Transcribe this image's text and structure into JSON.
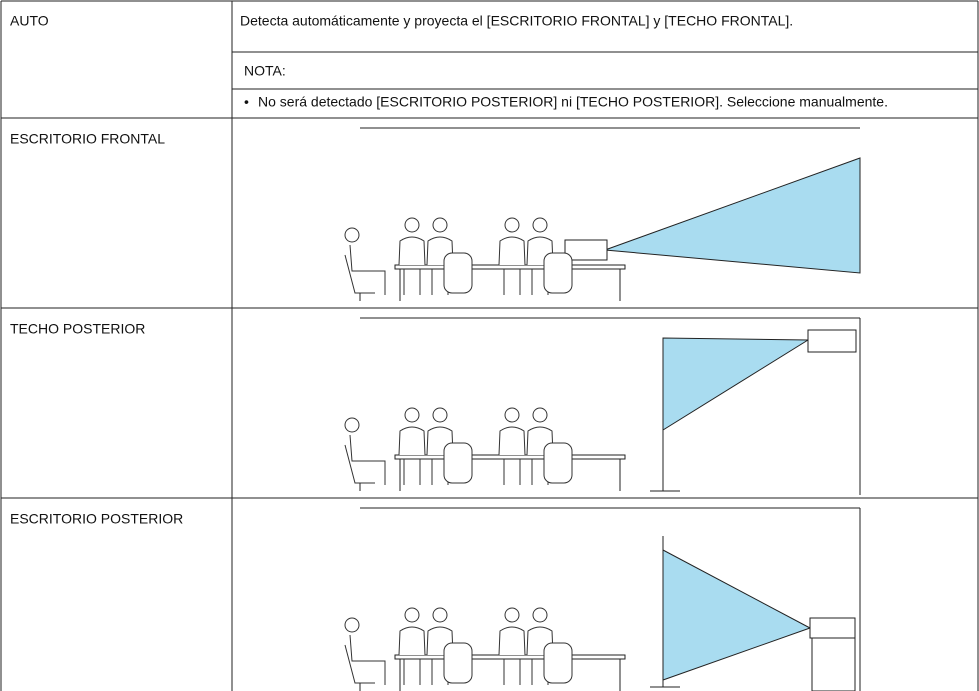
{
  "rows": [
    {
      "label": "AUTO",
      "description": "Detecta automáticamente y proyecta el [ESCRITORIO FRONTAL] y [TECHO FRONTAL].",
      "note": {
        "title": "NOTA:",
        "items": [
          "No será detectado [ESCRITORIO POSTERIOR] ni [TECHO POSTERIOR]. Seleccione manualmente."
        ]
      }
    },
    {
      "label": "ESCRITORIO FRONTAL"
    },
    {
      "label": "TECHO POSTERIOR"
    },
    {
      "label": "ESCRITORIO POSTERIOR"
    }
  ]
}
